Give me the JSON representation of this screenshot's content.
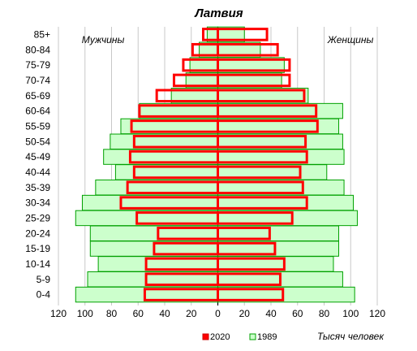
{
  "chart_data": {
    "type": "bar",
    "subtype": "population-pyramid",
    "title": "Латвия",
    "left_label": "Мужчины",
    "right_label": "Женщины",
    "x_unit_label": "Тысяч человек",
    "xlim": [
      -120,
      120
    ],
    "x_ticks": [
      -120,
      -100,
      -80,
      -60,
      -40,
      -20,
      0,
      20,
      40,
      60,
      80,
      100,
      120
    ],
    "x_tick_labels": [
      "120",
      "100",
      "80",
      "60",
      "40",
      "20",
      "0",
      "20",
      "40",
      "60",
      "80",
      "100",
      "120"
    ],
    "grid": true,
    "legend_position": "bottom-center",
    "categories": [
      "0-4",
      "5-9",
      "10-14",
      "15-19",
      "20-24",
      "25-29",
      "30-34",
      "35-39",
      "40-44",
      "45-49",
      "50-54",
      "55-59",
      "60-64",
      "65-69",
      "70-74",
      "75-79",
      "80-84",
      "85+"
    ],
    "series": [
      {
        "name": "1989",
        "color": "#ccffcc",
        "stroke": "#00a000",
        "male": [
          107,
          98,
          90,
          96,
          96,
          107,
          102,
          92,
          77,
          86,
          81,
          73,
          59,
          35,
          24,
          21,
          14,
          8
        ],
        "female": [
          103,
          94,
          87,
          91,
          91,
          105,
          102,
          95,
          82,
          95,
          94,
          91,
          94,
          68,
          48,
          50,
          32,
          20
        ]
      },
      {
        "name": "2020",
        "color": "none",
        "stroke": "#ff0000",
        "male": [
          55,
          54,
          54,
          48,
          45,
          61,
          73,
          68,
          63,
          66,
          63,
          65,
          59,
          46,
          33,
          26,
          19,
          11
        ],
        "female": [
          49,
          47,
          50,
          43,
          39,
          56,
          67,
          64,
          62,
          67,
          66,
          75,
          74,
          65,
          54,
          54,
          45,
          37
        ]
      }
    ]
  }
}
